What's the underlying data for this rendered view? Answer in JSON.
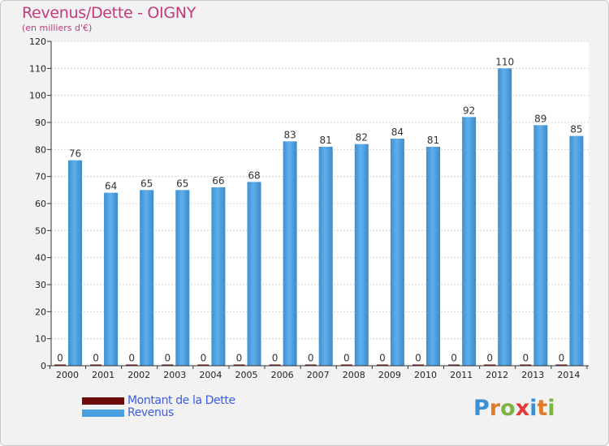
{
  "header": {
    "title": "Revenus/Dette - OIGNY",
    "subtitle": "(en milliers d'€)"
  },
  "logo": {
    "text": "Proxiti",
    "letter_colors": [
      "#3b8fd4",
      "#e07b27",
      "#7cb342",
      "#e53935",
      "#3b8fd4",
      "#e07b27",
      "#7cb342"
    ]
  },
  "chart_data": {
    "type": "bar",
    "title": "Revenus/Dette - OIGNY",
    "subtitle": "(en milliers d'€)",
    "xlabel": "",
    "ylabel": "",
    "categories": [
      "2000",
      "2001",
      "2002",
      "2003",
      "2004",
      "2005",
      "2006",
      "2007",
      "2008",
      "2009",
      "2010",
      "2011",
      "2012",
      "2013",
      "2014"
    ],
    "series": [
      {
        "name": "Montant de la Dette",
        "color": "#6b0b0b",
        "values": [
          0,
          0,
          0,
          0,
          0,
          0,
          0,
          0,
          0,
          0,
          0,
          0,
          0,
          0,
          0
        ]
      },
      {
        "name": "Revenus",
        "color": "#4a9fe0",
        "values": [
          76,
          64,
          65,
          65,
          66,
          68,
          83,
          81,
          82,
          84,
          81,
          92,
          110,
          89,
          85
        ]
      }
    ],
    "ylim": [
      0,
      120
    ],
    "yticks": [
      0,
      10,
      20,
      30,
      40,
      50,
      60,
      70,
      80,
      90,
      100,
      110,
      120
    ],
    "grid": true,
    "legend_position": "bottom-left"
  }
}
